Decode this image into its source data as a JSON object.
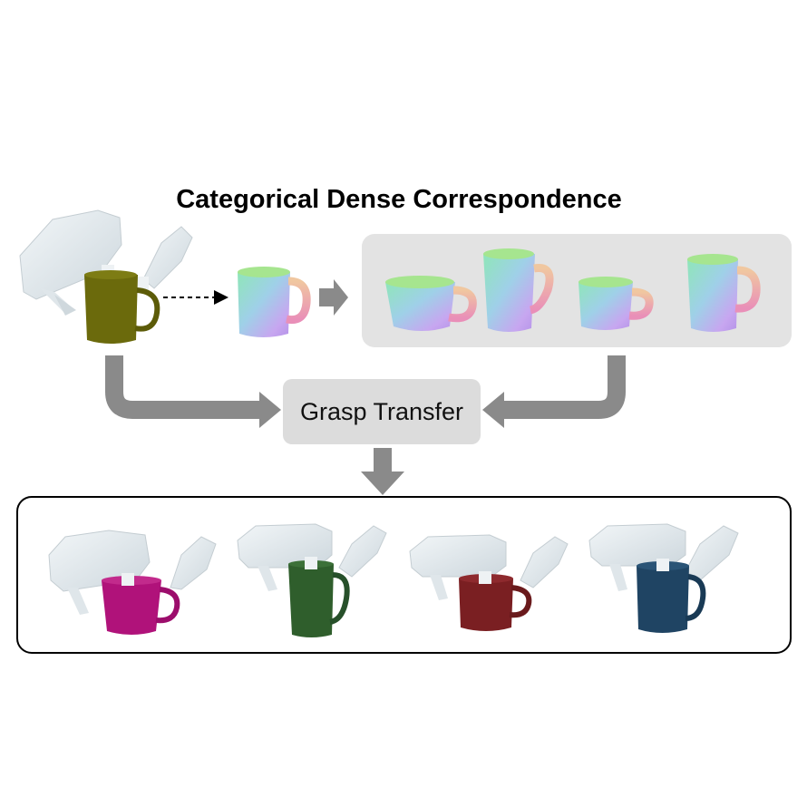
{
  "title": "Categorical Dense Correspondence",
  "process_box": {
    "label": "Grasp Transfer"
  },
  "source_mug": {
    "color": "#6b6a0c"
  },
  "canonical_mugs_count": 4,
  "result_mugs": [
    {
      "name": "magenta-mug",
      "color": "#b0127a"
    },
    {
      "name": "green-mug",
      "color": "#2f5e2c"
    },
    {
      "name": "red-mug",
      "color": "#7a1f22"
    },
    {
      "name": "blue-mug",
      "color": "#1f4463"
    }
  ],
  "colors": {
    "panel_bg": "#e3e3e3",
    "arrow_gray": "#8a8a8a",
    "gripper": "#dfe6ea",
    "result_border": "#000000"
  }
}
